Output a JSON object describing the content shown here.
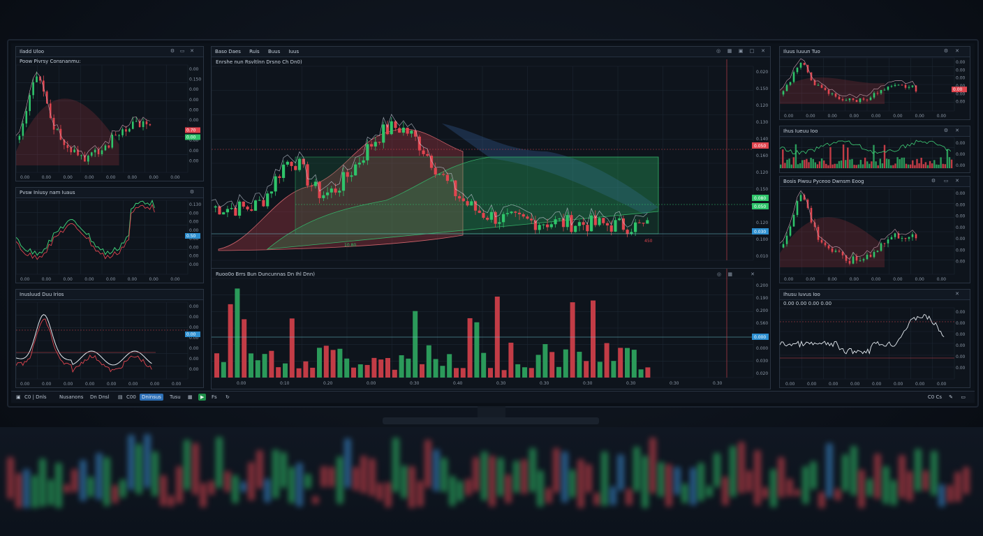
{
  "main_toolbar": {
    "tabs": [
      "Baso Daes",
      "Ruis",
      "Buus",
      "Iuus"
    ]
  },
  "main_chart": {
    "title": "Enrshe nun Rsvltlnn Drsno Ch Dn0)",
    "price_labels": [
      "0.020",
      "0.150",
      "0.120",
      "0.130",
      "0.140",
      "0.160",
      "0.120",
      "0.150",
      "0.130",
      "0.120",
      "0.100",
      "0.010"
    ],
    "marker_low": "10.80",
    "marker_last": "450",
    "tags": [
      "0.050",
      "0.080",
      "0.050",
      "0.030"
    ],
    "colors": {
      "up": "#2fc46a",
      "down": "#e0454f",
      "bg": "#0e141c"
    }
  },
  "volume_chart": {
    "title": "Ruoo0o Brrs Bun Duncunnas Dn Ihl Dnn)",
    "axis_labels": [
      "0.200",
      "0.190",
      "0.200",
      "0.560",
      "0.500",
      "0.000",
      "0.030",
      "0.020"
    ],
    "x_labels": [
      "0.00",
      "0:10",
      "0.20",
      "0.00",
      "0:30",
      "0.40",
      "0.30",
      "0.30",
      "0:30",
      "0.30",
      "0:30",
      "0.30"
    ],
    "tag": "0.000"
  },
  "left_panels": [
    {
      "header": "Iladd Uloo",
      "subtitle": "Poow Pivrsy Consnanmu:",
      "y_labels": [
        "0.00",
        "0.150",
        "0.00",
        "0.00",
        "0.00",
        "0.00",
        "0.00",
        "0.00",
        "0.00",
        "0.00"
      ],
      "tags": [
        "0.70",
        "0.00"
      ]
    },
    {
      "header": "Pvsw Iniusy nam Iuaus",
      "y_labels": [
        "0.130",
        "0.00",
        "0.00",
        "0.00",
        "0.00",
        "0.00",
        "0.00",
        "0.00"
      ],
      "tag": "0.50"
    },
    {
      "header": "Inusluud Duu Irios",
      "y_labels": [
        "0.00",
        "0.00",
        "0.00",
        "0.00",
        "0.00",
        "0.00",
        "0.00"
      ],
      "tag": "0.00"
    }
  ],
  "right_panels": [
    {
      "header": "Iluus Iuuun Tuo",
      "y_labels": [
        "0.00",
        "0.00",
        "0.00",
        "0.00",
        "0.00",
        "0.00"
      ],
      "tag": "0.00"
    },
    {
      "header": "Ihus Iueuu Ioo",
      "y_labels": [
        "0.00",
        "0.00",
        "0.00"
      ]
    },
    {
      "header": "Bosis Piwsu Pyceoo Dwnsm Eoog",
      "y_labels": [
        "0.00",
        "0.00",
        "0.00",
        "0.00",
        "0.00",
        "0.00",
        "0.00"
      ]
    },
    {
      "header": "Ihusu Iuvus Ioo",
      "subtitle": "0.00  0.00  0.00  0.00",
      "y_labels": [
        "0.00",
        "0.00",
        "0.00",
        "0.00",
        "0.00",
        "0.00"
      ]
    }
  ],
  "taskbar": {
    "items": [
      "C0  |  Dnls",
      "Nusanons",
      "Dn  Dnsl",
      "C00",
      "Dninsus",
      "Tusu",
      "Fs"
    ],
    "right": "C0 Cs"
  }
}
